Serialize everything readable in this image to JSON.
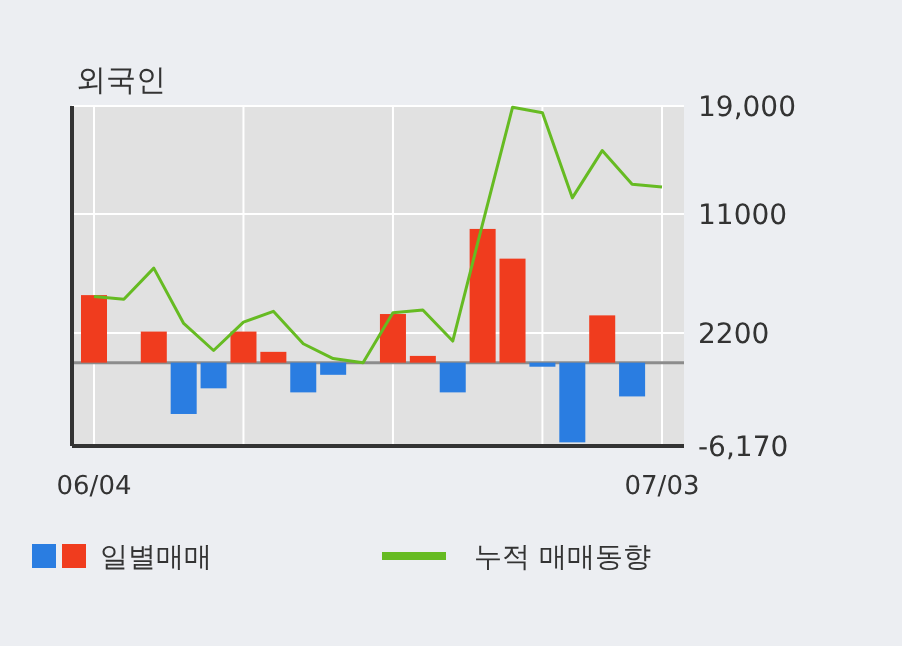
{
  "chart_data": {
    "type": "bar",
    "title": "외국인",
    "categories": [
      "06/04",
      null,
      null,
      null,
      null,
      null,
      null,
      null,
      null,
      null,
      null,
      null,
      null,
      null,
      null,
      null,
      null,
      null,
      null,
      "07/03"
    ],
    "series": [
      {
        "name": "일별매매",
        "colors": [
          "#f03c1e",
          "#f03c1e",
          "#f03c1e",
          "#2a7de1",
          "#2a7de1",
          "#f03c1e",
          "#f03c1e",
          "#2a7de1",
          "#2a7de1",
          "#f03c1e",
          "#f03c1e",
          "#f03c1e",
          "#2a7de1",
          "#f03c1e",
          "#f03c1e",
          "#2a7de1",
          "#2a7de1",
          "#f03c1e",
          "#2a7de1",
          "#f03c1e"
        ],
        "values": [
          5000,
          0,
          2300,
          -3800,
          -1900,
          2300,
          800,
          -2200,
          -900,
          0,
          3600,
          500,
          -2200,
          9900,
          7700,
          -300,
          -5900,
          3500,
          -2500,
          0
        ]
      },
      {
        "name": "누적 매매동향",
        "type": "line",
        "color": "#66bb22",
        "values": [
          4900,
          4700,
          7000,
          2900,
          900,
          3000,
          3800,
          1400,
          300,
          0,
          3700,
          3900,
          1600,
          10300,
          18900,
          18500,
          12200,
          15700,
          13200,
          13000
        ]
      }
    ],
    "ylim": [
      -6170,
      19000
    ],
    "yticks": [
      {
        "value": 19000,
        "label": "19,000"
      },
      {
        "value": 11000,
        "label": "11000"
      },
      {
        "value": 2200,
        "label": "2200"
      },
      {
        "value": -6170,
        "label": "-6,170"
      }
    ],
    "grid": true,
    "legend": "bottom",
    "marker": "none",
    "line_style": "solid"
  }
}
